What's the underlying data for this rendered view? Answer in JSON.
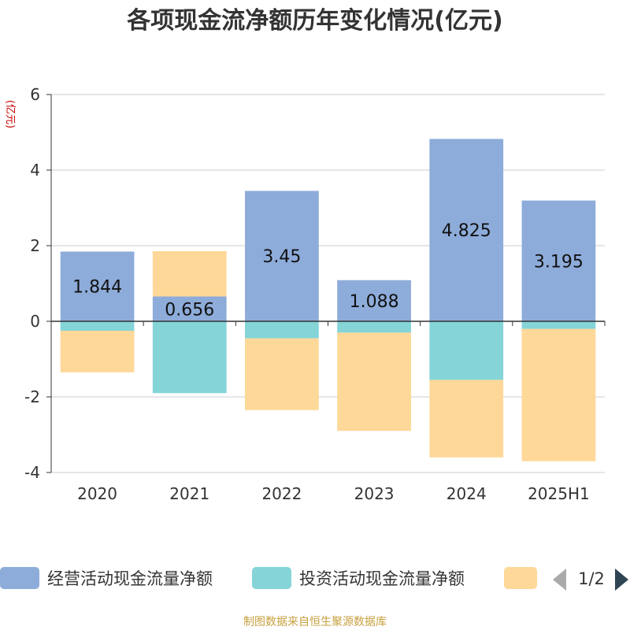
{
  "chart_data": {
    "type": "bar",
    "stacked": true,
    "title": "各项现金流净额历年变化情况(亿元)",
    "ylabel": "(亿元)",
    "xlabel": "",
    "categories": [
      "2020",
      "2021",
      "2022",
      "2023",
      "2024",
      "2025H1"
    ],
    "ylim": [
      -4,
      6
    ],
    "yticks": [
      -4,
      -2,
      0,
      2,
      4,
      6
    ],
    "grid": true,
    "legend_position": "bottom",
    "series": [
      {
        "name": "经营活动现金流量净额",
        "color": "#8eacda",
        "values": [
          1.844,
          0.656,
          3.45,
          1.088,
          4.825,
          3.195
        ],
        "labels": [
          "1.844",
          "0.656",
          "3.45",
          "1.088",
          "4.825",
          "3.195"
        ]
      },
      {
        "name": "投资活动现金流量净额",
        "color": "#84d4d8",
        "values": [
          -0.25,
          -1.9,
          -0.45,
          -0.3,
          -1.55,
          -0.2
        ]
      },
      {
        "color": "#fed899",
        "values": [
          -1.1,
          1.2,
          -1.9,
          -2.6,
          -2.05,
          -3.5
        ]
      }
    ]
  },
  "legend": {
    "page": "1/2"
  },
  "source": "制图数据来自恒生聚源数据库"
}
